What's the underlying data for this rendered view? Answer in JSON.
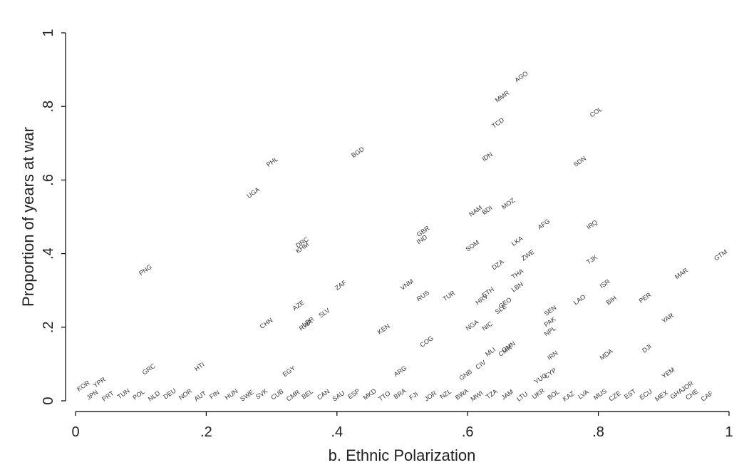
{
  "chart_data": {
    "type": "scatter",
    "title": "",
    "xlabel": "b. Ethnic Polarization",
    "ylabel": "Proportion of years at war",
    "xlim": [
      0,
      1
    ],
    "ylim": [
      0,
      1
    ],
    "x_ticks": [
      0,
      0.2,
      0.4,
      0.6,
      0.8,
      1
    ],
    "x_tick_labels": [
      "0",
      ".2",
      ".4",
      ".6",
      ".8",
      "1"
    ],
    "y_ticks": [
      0,
      0.2,
      0.4,
      0.6,
      0.8,
      1
    ],
    "y_tick_labels": [
      "0",
      ".2",
      ".4",
      ".6",
      ".8",
      "1"
    ],
    "grid": false,
    "marker": "country code label",
    "points": [
      {
        "label": "AGO",
        "x": 0.675,
        "y": 0.865
      },
      {
        "label": "MMR",
        "x": 0.645,
        "y": 0.81
      },
      {
        "label": "COL",
        "x": 0.79,
        "y": 0.77
      },
      {
        "label": "TCD",
        "x": 0.64,
        "y": 0.74
      },
      {
        "label": "BGD",
        "x": 0.425,
        "y": 0.66
      },
      {
        "label": "IDN",
        "x": 0.625,
        "y": 0.65
      },
      {
        "label": "PHL",
        "x": 0.295,
        "y": 0.635
      },
      {
        "label": "SDN",
        "x": 0.765,
        "y": 0.635
      },
      {
        "label": "UGA",
        "x": 0.265,
        "y": 0.55
      },
      {
        "label": "NAM",
        "x": 0.605,
        "y": 0.5
      },
      {
        "label": "BDI",
        "x": 0.625,
        "y": 0.505
      },
      {
        "label": "MOZ",
        "x": 0.655,
        "y": 0.52
      },
      {
        "label": "GBR",
        "x": 0.525,
        "y": 0.445
      },
      {
        "label": "IND",
        "x": 0.525,
        "y": 0.425
      },
      {
        "label": "AFG",
        "x": 0.71,
        "y": 0.465
      },
      {
        "label": "IRQ",
        "x": 0.785,
        "y": 0.465
      },
      {
        "label": "DRC",
        "x": 0.34,
        "y": 0.415
      },
      {
        "label": "KHM",
        "x": 0.34,
        "y": 0.4
      },
      {
        "label": "LKA",
        "x": 0.67,
        "y": 0.42
      },
      {
        "label": "SOM",
        "x": 0.6,
        "y": 0.405
      },
      {
        "label": "ZWE",
        "x": 0.685,
        "y": 0.38
      },
      {
        "label": "GTM",
        "x": 0.98,
        "y": 0.38
      },
      {
        "label": "TJK",
        "x": 0.785,
        "y": 0.37
      },
      {
        "label": "DZA",
        "x": 0.64,
        "y": 0.355
      },
      {
        "label": "PNG",
        "x": 0.1,
        "y": 0.34
      },
      {
        "label": "THA",
        "x": 0.67,
        "y": 0.33
      },
      {
        "label": "MAR",
        "x": 0.92,
        "y": 0.33
      },
      {
        "label": "VNM",
        "x": 0.5,
        "y": 0.3
      },
      {
        "label": "ZAF",
        "x": 0.4,
        "y": 0.3
      },
      {
        "label": "ISR",
        "x": 0.805,
        "y": 0.305
      },
      {
        "label": "LBN",
        "x": 0.67,
        "y": 0.295
      },
      {
        "label": "ETH",
        "x": 0.625,
        "y": 0.28
      },
      {
        "label": "RUS",
        "x": 0.525,
        "y": 0.27
      },
      {
        "label": "TUR",
        "x": 0.565,
        "y": 0.27
      },
      {
        "label": "HRV",
        "x": 0.615,
        "y": 0.26
      },
      {
        "label": "BIH",
        "x": 0.815,
        "y": 0.26
      },
      {
        "label": "PER",
        "x": 0.865,
        "y": 0.265
      },
      {
        "label": "LAO",
        "x": 0.765,
        "y": 0.26
      },
      {
        "label": "SEN",
        "x": 0.72,
        "y": 0.23
      },
      {
        "label": "GEO",
        "x": 0.65,
        "y": 0.25
      },
      {
        "label": "SLE",
        "x": 0.645,
        "y": 0.235
      },
      {
        "label": "AZE",
        "x": 0.335,
        "y": 0.245
      },
      {
        "label": "SLV",
        "x": 0.375,
        "y": 0.225
      },
      {
        "label": "YAR",
        "x": 0.9,
        "y": 0.21
      },
      {
        "label": "PAK",
        "x": 0.72,
        "y": 0.2
      },
      {
        "label": "CHN",
        "x": 0.285,
        "y": 0.195
      },
      {
        "label": "LBR",
        "x": 0.35,
        "y": 0.2
      },
      {
        "label": "RWA",
        "x": 0.345,
        "y": 0.19
      },
      {
        "label": "NGA",
        "x": 0.6,
        "y": 0.19
      },
      {
        "label": "NIC",
        "x": 0.625,
        "y": 0.19
      },
      {
        "label": "KEN",
        "x": 0.465,
        "y": 0.18
      },
      {
        "label": "NPL",
        "x": 0.72,
        "y": 0.175
      },
      {
        "label": "COG",
        "x": 0.53,
        "y": 0.145
      },
      {
        "label": "MLI",
        "x": 0.63,
        "y": 0.12
      },
      {
        "label": "GMN",
        "x": 0.655,
        "y": 0.13
      },
      {
        "label": "CMR",
        "x": 0.65,
        "y": 0.12
      },
      {
        "label": "DJI",
        "x": 0.87,
        "y": 0.13
      },
      {
        "label": "IRN",
        "x": 0.725,
        "y": 0.11
      },
      {
        "label": "MDA",
        "x": 0.805,
        "y": 0.11
      },
      {
        "label": "HTI",
        "x": 0.185,
        "y": 0.08
      },
      {
        "label": "GRC",
        "x": 0.105,
        "y": 0.07
      },
      {
        "label": "ARG",
        "x": 0.49,
        "y": 0.065
      },
      {
        "label": "CIV",
        "x": 0.615,
        "y": 0.085
      },
      {
        "label": "EGY",
        "x": 0.32,
        "y": 0.065
      },
      {
        "label": "GNB",
        "x": 0.59,
        "y": 0.055
      },
      {
        "label": "YEM",
        "x": 0.9,
        "y": 0.06
      },
      {
        "label": "KOR",
        "x": 0.005,
        "y": 0.025
      },
      {
        "label": "YPR",
        "x": 0.03,
        "y": 0.035
      },
      {
        "label": "JOR",
        "x": 0.93,
        "y": 0.025
      },
      {
        "label": "CYP",
        "x": 0.72,
        "y": 0.06
      },
      {
        "label": "YUG",
        "x": 0.705,
        "y": 0.045
      }
    ],
    "dense_labels": [
      "JPN",
      "PRT",
      "TUN",
      "POL",
      "NLD",
      "DEU",
      "NOR",
      "AUT",
      "FIN",
      "HUN",
      "SWE",
      "SVK",
      "CUB",
      "CMR",
      "BEL",
      "CAN",
      "SAU",
      "ESP",
      "MKD",
      "TTO",
      "BRA",
      "FJI",
      "JOR",
      "NZL",
      "BWA",
      "MWI",
      "TZA",
      "JAM",
      "LTU",
      "UKR",
      "BOL",
      "KAZ",
      "LVA",
      "MUS",
      "CZE",
      "EST",
      "ECU",
      "MEX",
      "GHA",
      "CHE",
      "CAF"
    ]
  }
}
